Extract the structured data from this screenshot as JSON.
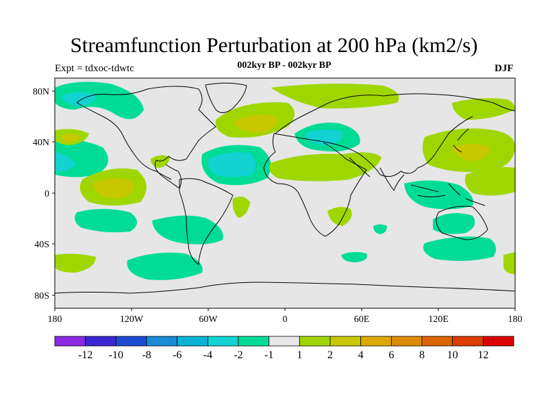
{
  "title": "Streamfunction Perturbation at 200 hPa (km2/s)",
  "subtitle": "002kyr BP - 002kyr BP",
  "experiment": "Expt = tdxoc-tdwtc",
  "season": "DJF",
  "map": {
    "lat_ticks": [
      "80N",
      "40N",
      "0",
      "40S",
      "80S"
    ],
    "lon_ticks": [
      "180",
      "120W",
      "60W",
      "0",
      "60E",
      "120E",
      "180"
    ],
    "background_color": "#e6e6e6"
  },
  "colorbar": {
    "colors": [
      "#8a2be2",
      "#3c28d2",
      "#1e4bd2",
      "#1a8ad6",
      "#08b4d6",
      "#12d2d2",
      "#00dc96",
      "#e6e6e6",
      "#a0d600",
      "#c8c800",
      "#dcaa00",
      "#dc8c00",
      "#dc6400",
      "#dc3c00",
      "#dc0000"
    ],
    "labels": [
      "-12",
      "-10",
      "-8",
      "-6",
      "-4",
      "-2",
      "-1",
      "1",
      "2",
      "4",
      "6",
      "8",
      "10",
      "12"
    ]
  },
  "colors": {
    "neg1": "#00dc96",
    "neg2": "#12d2d2",
    "pos1": "#a0d600",
    "pos2": "#c8c800"
  }
}
